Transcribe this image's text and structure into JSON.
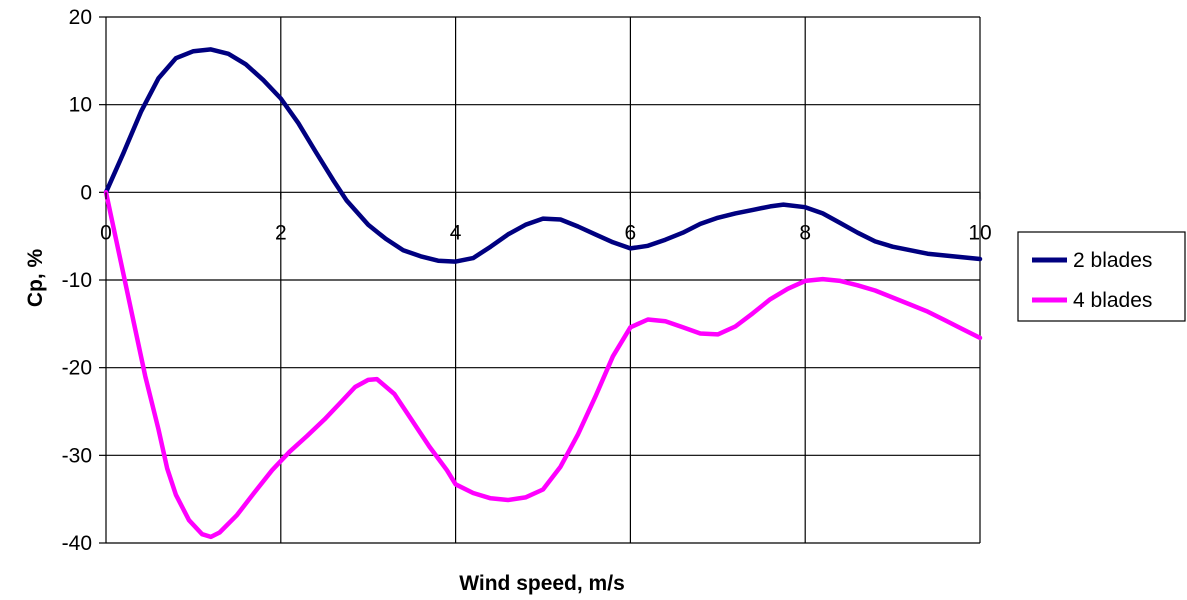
{
  "chart_data": {
    "type": "line",
    "title": "",
    "xlabel": "Wind speed, m/s",
    "ylabel": "Cp, %",
    "xlim": [
      0,
      10
    ],
    "ylim": [
      -40,
      20
    ],
    "xticks": [
      0,
      2,
      4,
      6,
      8,
      10
    ],
    "yticks": [
      20,
      10,
      0,
      -10,
      -20,
      -30,
      -40
    ],
    "grid": true,
    "legend_position": "right",
    "series": [
      {
        "name": "2 blades",
        "color": "#000080",
        "points": [
          [
            0,
            0
          ],
          [
            0.2,
            4.5
          ],
          [
            0.4,
            9.2
          ],
          [
            0.6,
            13
          ],
          [
            0.8,
            15.3
          ],
          [
            1.0,
            16.1
          ],
          [
            1.2,
            16.3
          ],
          [
            1.4,
            15.8
          ],
          [
            1.6,
            14.6
          ],
          [
            1.8,
            12.8
          ],
          [
            2.0,
            10.7
          ],
          [
            2.2,
            7.9
          ],
          [
            2.4,
            4.6
          ],
          [
            2.6,
            1.4
          ],
          [
            2.75,
            -0.9
          ],
          [
            3.0,
            -3.7
          ],
          [
            3.2,
            -5.3
          ],
          [
            3.4,
            -6.6
          ],
          [
            3.6,
            -7.3
          ],
          [
            3.8,
            -7.8
          ],
          [
            4.0,
            -7.9
          ],
          [
            4.2,
            -7.5
          ],
          [
            4.4,
            -6.2
          ],
          [
            4.6,
            -4.8
          ],
          [
            4.8,
            -3.7
          ],
          [
            5.0,
            -3.0
          ],
          [
            5.2,
            -3.1
          ],
          [
            5.4,
            -3.9
          ],
          [
            5.6,
            -4.8
          ],
          [
            5.8,
            -5.7
          ],
          [
            6.0,
            -6.4
          ],
          [
            6.2,
            -6.1
          ],
          [
            6.4,
            -5.4
          ],
          [
            6.6,
            -4.6
          ],
          [
            6.8,
            -3.6
          ],
          [
            7.0,
            -2.9
          ],
          [
            7.2,
            -2.4
          ],
          [
            7.4,
            -2.0
          ],
          [
            7.6,
            -1.6
          ],
          [
            7.75,
            -1.4
          ],
          [
            8.0,
            -1.7
          ],
          [
            8.2,
            -2.4
          ],
          [
            8.4,
            -3.5
          ],
          [
            8.6,
            -4.6
          ],
          [
            8.8,
            -5.6
          ],
          [
            9.0,
            -6.2
          ],
          [
            9.2,
            -6.6
          ],
          [
            9.4,
            -7.0
          ],
          [
            9.6,
            -7.2
          ],
          [
            9.8,
            -7.4
          ],
          [
            10.0,
            -7.6
          ]
        ]
      },
      {
        "name": "4 blades",
        "color": "#ff00ff",
        "points": [
          [
            0,
            0
          ],
          [
            0.15,
            -7
          ],
          [
            0.3,
            -14
          ],
          [
            0.45,
            -21
          ],
          [
            0.6,
            -27
          ],
          [
            0.7,
            -31.5
          ],
          [
            0.8,
            -34.5
          ],
          [
            0.95,
            -37.4
          ],
          [
            1.1,
            -39.0
          ],
          [
            1.2,
            -39.3
          ],
          [
            1.3,
            -38.8
          ],
          [
            1.5,
            -36.8
          ],
          [
            1.7,
            -34.2
          ],
          [
            1.9,
            -31.7
          ],
          [
            2.1,
            -29.6
          ],
          [
            2.3,
            -27.8
          ],
          [
            2.5,
            -25.9
          ],
          [
            2.7,
            -23.8
          ],
          [
            2.85,
            -22.2
          ],
          [
            3.0,
            -21.4
          ],
          [
            3.1,
            -21.3
          ],
          [
            3.3,
            -23.0
          ],
          [
            3.5,
            -26.0
          ],
          [
            3.7,
            -29.0
          ],
          [
            3.9,
            -31.7
          ],
          [
            4.0,
            -33.3
          ],
          [
            4.2,
            -34.3
          ],
          [
            4.4,
            -34.9
          ],
          [
            4.6,
            -35.1
          ],
          [
            4.8,
            -34.8
          ],
          [
            5.0,
            -33.9
          ],
          [
            5.2,
            -31.3
          ],
          [
            5.4,
            -27.6
          ],
          [
            5.6,
            -23.3
          ],
          [
            5.8,
            -18.7
          ],
          [
            6.0,
            -15.4
          ],
          [
            6.2,
            -14.5
          ],
          [
            6.4,
            -14.7
          ],
          [
            6.6,
            -15.4
          ],
          [
            6.8,
            -16.1
          ],
          [
            7.0,
            -16.2
          ],
          [
            7.2,
            -15.3
          ],
          [
            7.4,
            -13.8
          ],
          [
            7.6,
            -12.2
          ],
          [
            7.8,
            -11.0
          ],
          [
            8.0,
            -10.1
          ],
          [
            8.2,
            -9.9
          ],
          [
            8.4,
            -10.1
          ],
          [
            8.6,
            -10.6
          ],
          [
            8.8,
            -11.2
          ],
          [
            9.0,
            -12.0
          ],
          [
            9.2,
            -12.8
          ],
          [
            9.4,
            -13.6
          ],
          [
            9.6,
            -14.6
          ],
          [
            9.8,
            -15.6
          ],
          [
            10.0,
            -16.6
          ]
        ]
      }
    ]
  }
}
